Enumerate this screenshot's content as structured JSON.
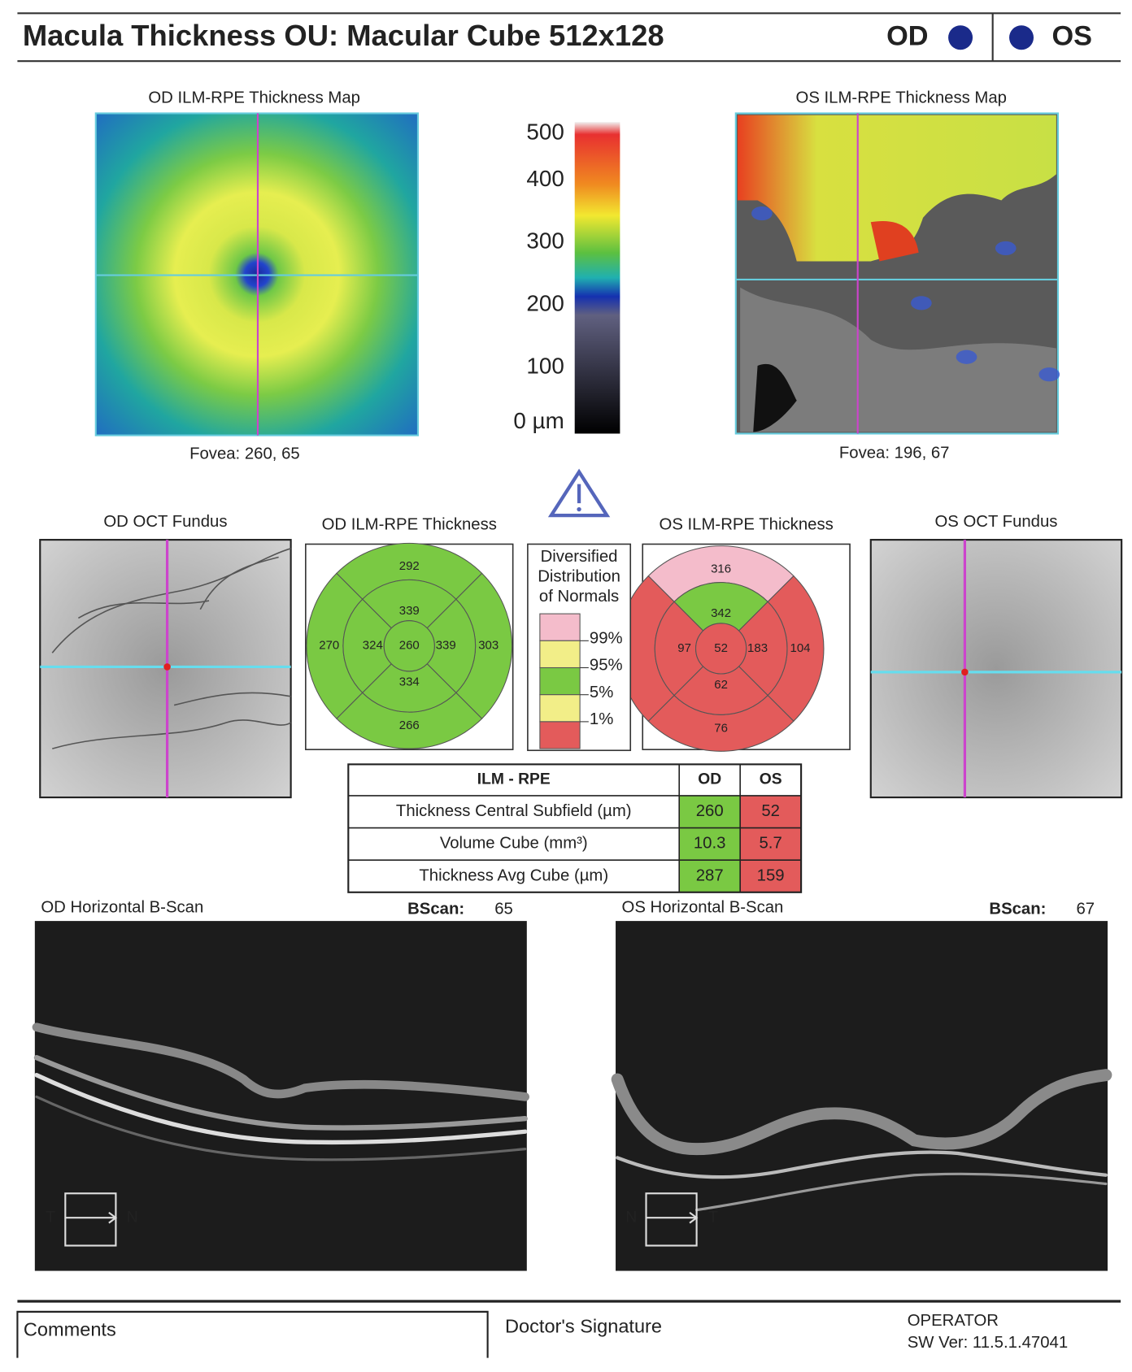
{
  "header": {
    "title": "Macula Thickness OU: Macular Cube 512x128",
    "od": "OD",
    "os": "OS"
  },
  "od_map": {
    "title": "OD ILM-RPE Thickness Map",
    "fovea": "Fovea: 260, 65"
  },
  "os_map": {
    "title": "OS ILM-RPE Thickness Map",
    "fovea": "Fovea: 196, 67"
  },
  "color_scale": {
    "labels": [
      "500",
      "400",
      "300",
      "200",
      "100",
      "0 µm"
    ]
  },
  "od_fundus": {
    "title": "OD OCT Fundus"
  },
  "os_fundus": {
    "title": "OS OCT Fundus"
  },
  "od_thickness": {
    "title": "OD ILM-RPE Thickness",
    "sectors": {
      "outer_superior": 292,
      "inner_superior": 339,
      "outer_temporal": 270,
      "inner_temporal": 324,
      "center": 260,
      "inner_nasal": 339,
      "outer_nasal": 303,
      "inner_inferior": 334,
      "outer_inferior": 266
    }
  },
  "os_thickness": {
    "title": "OS ILM-RPE Thickness",
    "sectors": {
      "outer_superior": 316,
      "inner_superior": 342,
      "inner_temporal": 97,
      "center": 52,
      "inner_nasal": 183,
      "outer_nasal": 104,
      "inner_inferior": 62,
      "outer_inferior": 76
    }
  },
  "legend": {
    "title": [
      "Diversified",
      "Distribution",
      "of Normals"
    ],
    "labels": [
      "99%",
      "95%",
      "5%",
      "1%"
    ]
  },
  "table": {
    "header": [
      "ILM - RPE",
      "OD",
      "OS"
    ],
    "rows": [
      [
        "Thickness Central Subfield (µm)",
        "260",
        "52"
      ],
      [
        "Volume Cube (mm³)",
        "10.3",
        "5.7"
      ],
      [
        "Thickness Avg Cube (µm)",
        "287",
        "159"
      ]
    ]
  },
  "od_bscan": {
    "title": "OD Horizontal B-Scan",
    "label": "BScan:",
    "number": "65",
    "left": "T",
    "right": "N"
  },
  "os_bscan": {
    "title": "OS Horizontal B-Scan",
    "label": "BScan:",
    "number": "67",
    "left": "N",
    "right": "T"
  },
  "footer": {
    "comments": "Comments",
    "signature": "Doctor's Signature",
    "operator": "OPERATOR",
    "software": "SW Ver: 11.5.1.47041"
  }
}
